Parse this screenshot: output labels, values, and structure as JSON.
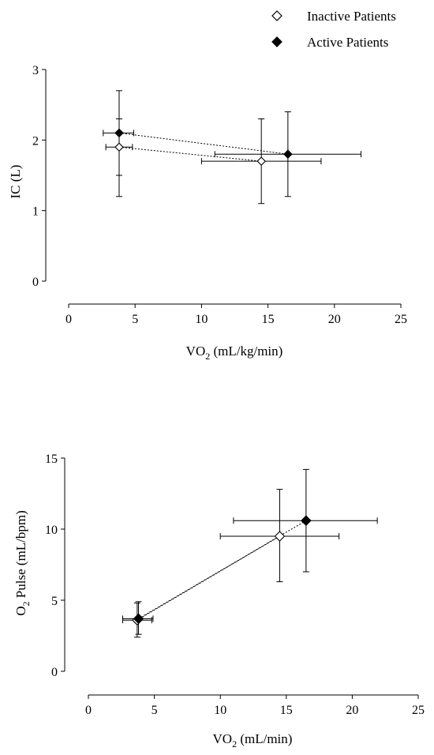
{
  "legend": [
    {
      "label": "Inactive Patients",
      "marker": "open-diamond",
      "color": "#000000"
    },
    {
      "label": "Active Patients",
      "marker": "filled-diamond",
      "color": "#000000"
    }
  ],
  "chart_data": [
    {
      "type": "scatter",
      "ylabel": "IC (L)",
      "xlabel_main": "VO",
      "xlabel_sub": "2",
      "xlabel_units": " (mL/kg/min)",
      "xlim": [
        0,
        25
      ],
      "ylim": [
        0,
        3
      ],
      "xticks": [
        0,
        5,
        10,
        15,
        20,
        25
      ],
      "yticks": [
        0,
        1,
        2,
        3
      ],
      "grid": false,
      "series": [
        {
          "name": "Inactive Patients",
          "marker": "open-diamond",
          "points": [
            {
              "x": 3.8,
              "y": 1.9,
              "xerr": [
                2.8,
                4.8
              ],
              "yerr": [
                1.5,
                2.3
              ]
            },
            {
              "x": 14.5,
              "y": 1.7,
              "xerr": [
                10.0,
                19.0
              ],
              "yerr": [
                1.1,
                2.3
              ]
            }
          ]
        },
        {
          "name": "Active Patients",
          "marker": "filled-diamond",
          "points": [
            {
              "x": 3.8,
              "y": 2.1,
              "xerr": [
                2.6,
                4.9
              ],
              "yerr": [
                1.2,
                2.7
              ]
            },
            {
              "x": 16.5,
              "y": 1.8,
              "xerr": [
                11.0,
                22.0
              ],
              "yerr": [
                1.2,
                2.4
              ]
            }
          ]
        }
      ]
    },
    {
      "type": "scatter",
      "ylabel_pre": "O",
      "ylabel_sub": "2",
      "ylabel_post": " Pulse (mL/bpm)",
      "xlabel_main": "VO",
      "xlabel_sub": "2",
      "xlabel_units": " (mL/min)",
      "xlim": [
        0,
        25
      ],
      "ylim": [
        0,
        15
      ],
      "xticks": [
        0,
        5,
        10,
        15,
        20,
        25
      ],
      "yticks": [
        0,
        5,
        10,
        15
      ],
      "grid": false,
      "series": [
        {
          "name": "Inactive Patients",
          "marker": "open-diamond",
          "points": [
            {
              "x": 3.7,
              "y": 3.6,
              "xerr": [
                2.6,
                4.8
              ],
              "yerr": [
                2.4,
                4.8
              ]
            },
            {
              "x": 14.5,
              "y": 9.5,
              "xerr": [
                10.0,
                19.0
              ],
              "yerr": [
                6.3,
                12.8
              ]
            }
          ]
        },
        {
          "name": "Active Patients",
          "marker": "filled-diamond",
          "points": [
            {
              "x": 3.8,
              "y": 3.7,
              "xerr": [
                2.6,
                4.9
              ],
              "yerr": [
                2.6,
                4.9
              ]
            },
            {
              "x": 16.5,
              "y": 10.6,
              "xerr": [
                11.0,
                21.9
              ],
              "yerr": [
                7.0,
                14.2
              ]
            }
          ]
        }
      ]
    }
  ]
}
